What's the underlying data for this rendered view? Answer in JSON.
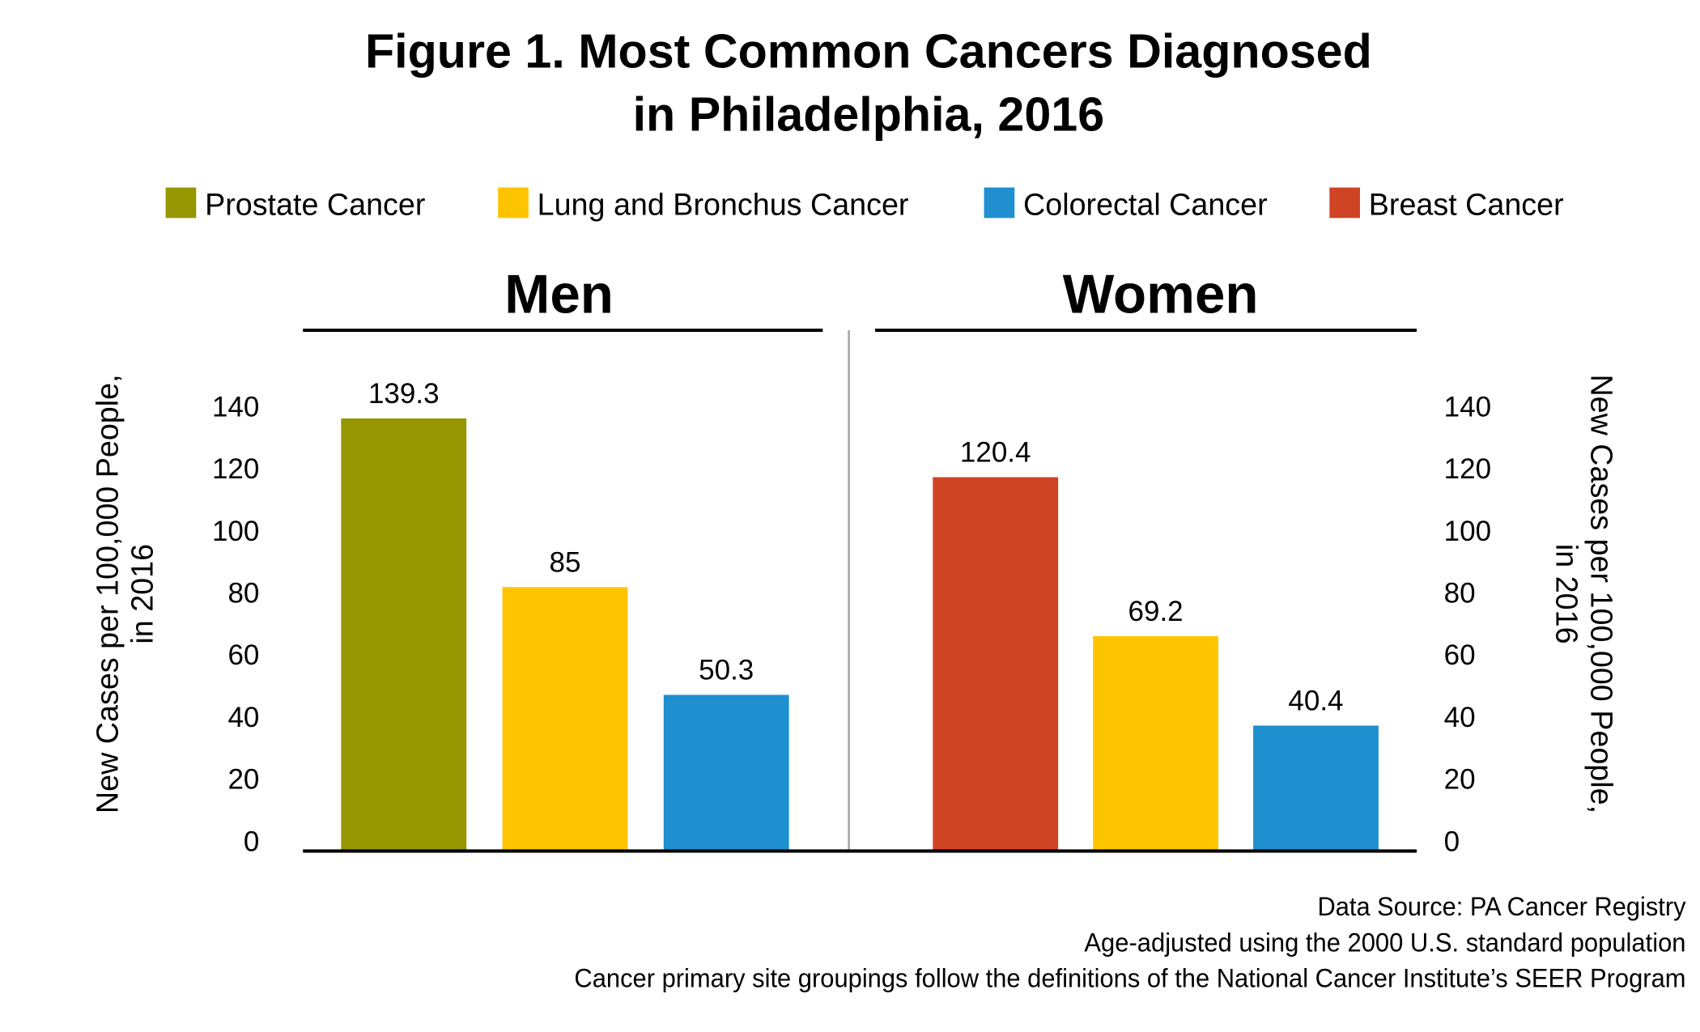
{
  "chart_data": {
    "type": "bar",
    "title_lines": [
      "Figure 1. Most Common Cancers Diagnosed",
      "in Philadelphia, 2016"
    ],
    "legend": [
      {
        "name": "Prostate Cancer",
        "color": "#969600"
      },
      {
        "name": "Lung and Bronchus Cancer",
        "color": "#FFC400"
      },
      {
        "name": "Colorectal Cancer",
        "color": "#1F8FD0"
      },
      {
        "name": "Breast Cancer",
        "color": "#D04426"
      }
    ],
    "legend_placement": "top",
    "ylabel_lines": [
      "New Cases per 100,000 People,",
      "in 2016"
    ],
    "ylim": [
      0,
      140
    ],
    "yticks": [
      "0",
      "20",
      "40",
      "60",
      "80",
      "100",
      "120",
      "140"
    ],
    "grid": false,
    "panels": [
      {
        "title": "Men",
        "bars": [
          {
            "category": "Prostate Cancer",
            "value": 139.3,
            "label": "139.3"
          },
          {
            "category": "Lung and Bronchus Cancer",
            "value": 85,
            "label": "85"
          },
          {
            "category": "Colorectal Cancer",
            "value": 50.3,
            "label": "50.3"
          }
        ]
      },
      {
        "title": "Women",
        "bars": [
          {
            "category": "Breast Cancer",
            "value": 120.4,
            "label": "120.4"
          },
          {
            "category": "Lung and Bronchus Cancer",
            "value": 69.2,
            "label": "69.2"
          },
          {
            "category": "Colorectal Cancer",
            "value": 40.4,
            "label": "40.4"
          }
        ]
      }
    ],
    "footnotes": [
      "Data Source: PA Cancer Registry",
      "Age-adjusted using the 2000 U.S. standard population",
      "Cancer primary site groupings follow the definitions of the National Cancer Institute’s SEER Program"
    ]
  }
}
